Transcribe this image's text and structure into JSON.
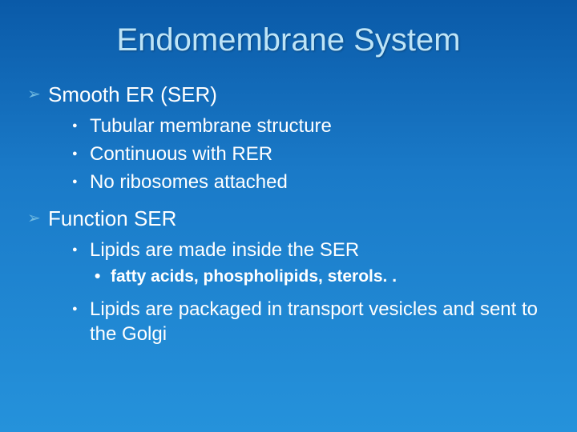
{
  "slide": {
    "background_top": "#0a5aa8",
    "background_mid": "#1a7ac8",
    "background_bottom": "#2592db",
    "title_color": "#bde4f7",
    "text_color": "#ffffff",
    "arrow_bullet_color": "#6fb9e0",
    "dot_bullet_color": "#ffffff",
    "title_fontsize": 40,
    "l1_fontsize": 26,
    "l2_fontsize": 24,
    "l3_fontsize": 21,
    "title": "Endomembrane System",
    "sections": [
      {
        "heading": "Smooth ER (SER)",
        "items": [
          {
            "text": "Tubular membrane structure"
          },
          {
            "text": "Continuous with RER"
          },
          {
            "text": "No ribosomes attached"
          }
        ]
      },
      {
        "heading": "Function SER",
        "items": [
          {
            "text": "Lipids are made inside the SER",
            "subitems": [
              {
                "text": "fatty acids, phospholipids, sterols. ."
              }
            ]
          },
          {
            "text": "Lipids are packaged in transport vesicles and sent to the Golgi"
          }
        ]
      }
    ]
  }
}
